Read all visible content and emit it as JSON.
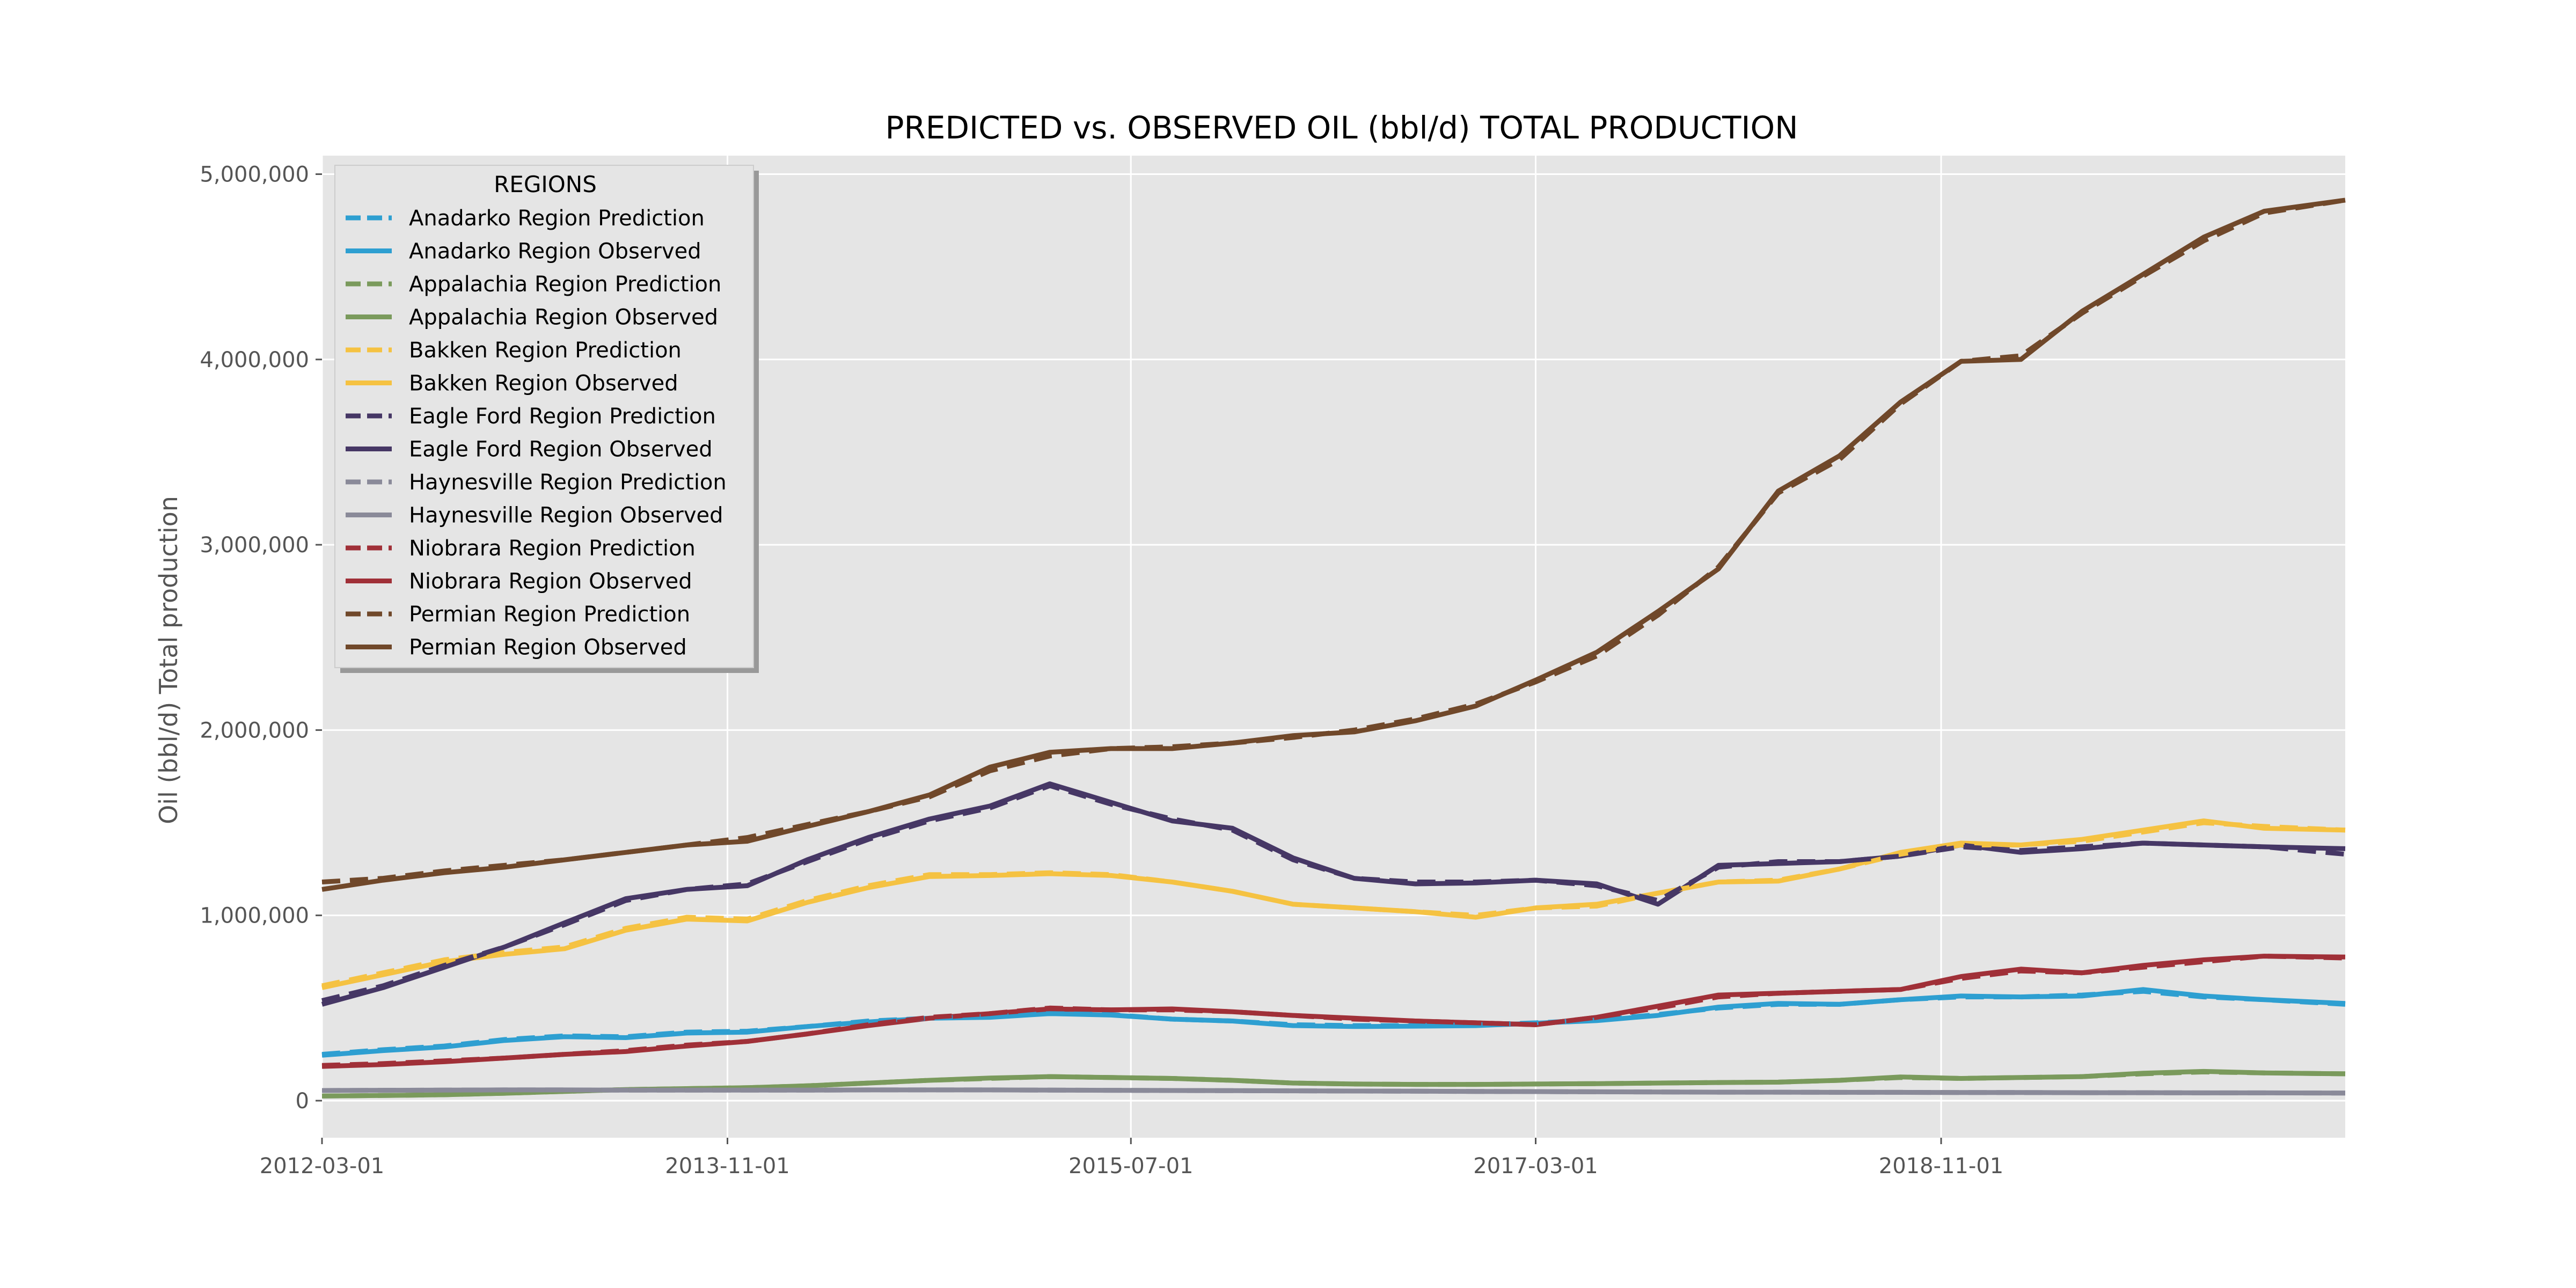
{
  "chart_data": {
    "type": "line",
    "title": "PREDICTED vs. OBSERVED OIL (bbl/d) TOTAL PRODUCTION",
    "xlabel": "",
    "ylabel": "Oil (bbl/d) Total production",
    "x_start": "2012-03-01",
    "x_end": "2020-07-01",
    "x_ticks": [
      "2012-03-01",
      "2013-11-01",
      "2015-07-01",
      "2017-03-01",
      "2018-11-01"
    ],
    "y_ticks": [
      0,
      1000000,
      2000000,
      3000000,
      4000000,
      5000000
    ],
    "y_tick_labels": [
      "0",
      "1,000,000",
      "2,000,000",
      "3,000,000",
      "4,000,000",
      "5,000,000"
    ],
    "ylim": [
      -200000,
      5100000
    ],
    "grid": true,
    "legend_title": "REGIONS",
    "legend_position": "upper-left",
    "dates": [
      "2012-03-01",
      "2012-06-01",
      "2012-09-01",
      "2012-12-01",
      "2013-03-01",
      "2013-06-01",
      "2013-09-01",
      "2013-12-01",
      "2014-03-01",
      "2014-06-01",
      "2014-09-01",
      "2014-12-01",
      "2015-03-01",
      "2015-06-01",
      "2015-09-01",
      "2015-12-01",
      "2016-03-01",
      "2016-06-01",
      "2016-09-01",
      "2016-12-01",
      "2017-03-01",
      "2017-06-01",
      "2017-09-01",
      "2017-12-01",
      "2018-03-01",
      "2018-06-01",
      "2018-09-01",
      "2018-12-01",
      "2019-03-01",
      "2019-06-01",
      "2019-09-01",
      "2019-12-01",
      "2020-03-01",
      "2020-07-01"
    ],
    "series": [
      {
        "name": "Anadarko Region Prediction",
        "color": "#2e9fd1",
        "dashed": true,
        "values": [
          250000,
          275000,
          295000,
          330000,
          350000,
          345000,
          370000,
          375000,
          400000,
          430000,
          445000,
          455000,
          470000,
          465000,
          440000,
          430000,
          410000,
          405000,
          405000,
          410000,
          420000,
          435000,
          465000,
          500000,
          520000,
          520000,
          545000,
          560000,
          560000,
          570000,
          590000,
          560000,
          545000,
          520000
        ]
      },
      {
        "name": "Anadarko Region Observed",
        "color": "#2e9fd1",
        "dashed": false,
        "values": [
          245000,
          270000,
          290000,
          325000,
          345000,
          340000,
          365000,
          370000,
          400000,
          425000,
          445000,
          450000,
          470000,
          462000,
          440000,
          430000,
          405000,
          400000,
          402000,
          405000,
          418000,
          432000,
          460000,
          505000,
          525000,
          520000,
          545000,
          565000,
          560000,
          565000,
          600000,
          565000,
          545000,
          525000
        ]
      },
      {
        "name": "Appalachia Region Prediction",
        "color": "#7a9a5c",
        "dashed": true,
        "values": [
          25000,
          28000,
          32000,
          40000,
          50000,
          60000,
          65000,
          70000,
          80000,
          95000,
          110000,
          120000,
          130000,
          125000,
          120000,
          110000,
          95000,
          90000,
          88000,
          88000,
          90000,
          92000,
          95000,
          98000,
          100000,
          110000,
          125000,
          120000,
          125000,
          130000,
          145000,
          155000,
          150000,
          145000
        ]
      },
      {
        "name": "Appalachia Region Observed",
        "color": "#7a9a5c",
        "dashed": false,
        "values": [
          25000,
          28000,
          32000,
          40000,
          50000,
          60000,
          65000,
          70000,
          80000,
          95000,
          110000,
          122000,
          130000,
          125000,
          120000,
          110000,
          95000,
          90000,
          88000,
          88000,
          90000,
          92000,
          95000,
          98000,
          100000,
          110000,
          128000,
          120000,
          125000,
          130000,
          148000,
          158000,
          150000,
          145000
        ]
      },
      {
        "name": "Bakken Region Prediction",
        "color": "#f5c242",
        "dashed": true,
        "values": [
          620000,
          690000,
          760000,
          800000,
          830000,
          930000,
          990000,
          980000,
          1080000,
          1160000,
          1220000,
          1220000,
          1230000,
          1220000,
          1180000,
          1130000,
          1060000,
          1040000,
          1020000,
          1000000,
          1040000,
          1050000,
          1120000,
          1180000,
          1190000,
          1250000,
          1330000,
          1380000,
          1380000,
          1400000,
          1450000,
          1500000,
          1480000,
          1460000
        ]
      },
      {
        "name": "Bakken Region Observed",
        "color": "#f5c242",
        "dashed": false,
        "values": [
          610000,
          680000,
          750000,
          790000,
          820000,
          920000,
          980000,
          970000,
          1070000,
          1150000,
          1210000,
          1215000,
          1225000,
          1215000,
          1180000,
          1130000,
          1060000,
          1040000,
          1020000,
          990000,
          1040000,
          1060000,
          1120000,
          1180000,
          1185000,
          1250000,
          1340000,
          1390000,
          1380000,
          1410000,
          1460000,
          1510000,
          1470000,
          1460000
        ]
      },
      {
        "name": "Eagle Ford Region Prediction",
        "color": "#463765",
        "dashed": true,
        "values": [
          540000,
          620000,
          730000,
          830000,
          950000,
          1080000,
          1140000,
          1170000,
          1290000,
          1410000,
          1510000,
          1580000,
          1700000,
          1600000,
          1520000,
          1460000,
          1300000,
          1200000,
          1180000,
          1180000,
          1190000,
          1160000,
          1080000,
          1260000,
          1290000,
          1290000,
          1320000,
          1370000,
          1350000,
          1370000,
          1390000,
          1380000,
          1370000,
          1330000
        ]
      },
      {
        "name": "Eagle Ford Region Observed",
        "color": "#463765",
        "dashed": false,
        "values": [
          520000,
          610000,
          720000,
          830000,
          960000,
          1090000,
          1140000,
          1160000,
          1300000,
          1420000,
          1520000,
          1590000,
          1710000,
          1610000,
          1510000,
          1470000,
          1310000,
          1200000,
          1170000,
          1175000,
          1190000,
          1170000,
          1060000,
          1270000,
          1280000,
          1290000,
          1320000,
          1380000,
          1340000,
          1360000,
          1390000,
          1380000,
          1370000,
          1360000
        ]
      },
      {
        "name": "Haynesville Region Prediction",
        "color": "#8a8a99",
        "dashed": true,
        "values": [
          55000,
          56000,
          57000,
          58000,
          58000,
          57000,
          57000,
          57000,
          57000,
          58000,
          58000,
          58000,
          57000,
          56000,
          55000,
          54000,
          53000,
          52000,
          51000,
          50000,
          49000,
          48000,
          47000,
          46000,
          46000,
          45000,
          45000,
          44000,
          44000,
          43000,
          43000,
          42000,
          42000,
          41000
        ]
      },
      {
        "name": "Haynesville Region Observed",
        "color": "#8a8a99",
        "dashed": false,
        "values": [
          55000,
          56000,
          57000,
          58000,
          58000,
          57000,
          57000,
          57000,
          57000,
          58000,
          58000,
          58000,
          57000,
          56000,
          55000,
          54000,
          53000,
          52000,
          51000,
          50000,
          49000,
          48000,
          47000,
          46000,
          46000,
          45000,
          45000,
          44000,
          44000,
          43000,
          43000,
          42000,
          42000,
          41000
        ]
      },
      {
        "name": "Niobrara Region Prediction",
        "color": "#a03038",
        "dashed": true,
        "values": [
          190000,
          200000,
          215000,
          230000,
          250000,
          270000,
          300000,
          320000,
          360000,
          410000,
          450000,
          470000,
          500000,
          490000,
          490000,
          480000,
          460000,
          440000,
          430000,
          420000,
          410000,
          450000,
          500000,
          560000,
          580000,
          590000,
          600000,
          660000,
          700000,
          690000,
          720000,
          750000,
          780000,
          770000
        ]
      },
      {
        "name": "Niobrara Region Observed",
        "color": "#a03038",
        "dashed": false,
        "values": [
          185000,
          195000,
          210000,
          230000,
          250000,
          265000,
          295000,
          320000,
          360000,
          405000,
          445000,
          470000,
          495000,
          490000,
          495000,
          480000,
          460000,
          445000,
          430000,
          420000,
          410000,
          450000,
          510000,
          570000,
          580000,
          590000,
          600000,
          670000,
          710000,
          690000,
          730000,
          760000,
          780000,
          775000
        ]
      },
      {
        "name": "Permian Region Prediction",
        "color": "#70482a",
        "dashed": true,
        "values": [
          1180000,
          1200000,
          1240000,
          1270000,
          1300000,
          1340000,
          1380000,
          1420000,
          1490000,
          1560000,
          1640000,
          1780000,
          1860000,
          1900000,
          1910000,
          1930000,
          1960000,
          2000000,
          2060000,
          2140000,
          2260000,
          2400000,
          2620000,
          2880000,
          3280000,
          3460000,
          3760000,
          3990000,
          4020000,
          4250000,
          4450000,
          4640000,
          4790000,
          4860000
        ]
      },
      {
        "name": "Permian Region Observed",
        "color": "#70482a",
        "dashed": false,
        "values": [
          1140000,
          1190000,
          1230000,
          1260000,
          1300000,
          1340000,
          1380000,
          1400000,
          1480000,
          1560000,
          1650000,
          1800000,
          1880000,
          1900000,
          1900000,
          1930000,
          1970000,
          1990000,
          2050000,
          2130000,
          2270000,
          2420000,
          2640000,
          2870000,
          3290000,
          3480000,
          3770000,
          3990000,
          4000000,
          4260000,
          4460000,
          4660000,
          4800000,
          4860000
        ]
      }
    ]
  }
}
